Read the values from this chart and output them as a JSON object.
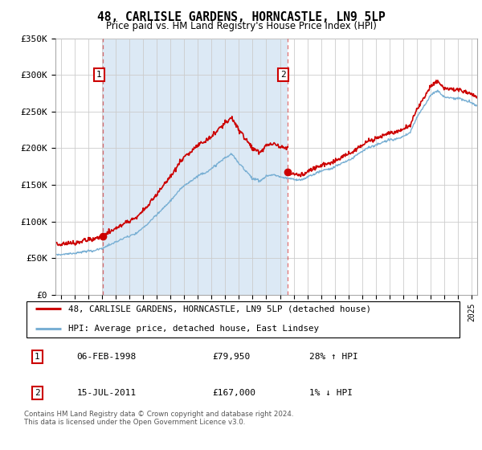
{
  "title": "48, CARLISLE GARDENS, HORNCASTLE, LN9 5LP",
  "subtitle": "Price paid vs. HM Land Registry's House Price Index (HPI)",
  "ylim": [
    0,
    350000
  ],
  "yticks": [
    0,
    50000,
    100000,
    150000,
    200000,
    250000,
    300000,
    350000
  ],
  "ytick_labels": [
    "£0",
    "£50K",
    "£100K",
    "£150K",
    "£200K",
    "£250K",
    "£300K",
    "£350K"
  ],
  "xlim_start": 1994.6,
  "xlim_end": 2025.4,
  "transaction1": {
    "date": 1998.09,
    "price": 79950,
    "label": "1"
  },
  "transaction2": {
    "date": 2011.54,
    "price": 167000,
    "label": "2"
  },
  "line_color_red": "#cc0000",
  "line_color_blue": "#7ab0d4",
  "marker_color": "#cc0000",
  "grid_color": "#cccccc",
  "shade_color": "#dce9f5",
  "background_color": "#ffffff",
  "legend_line1": "48, CARLISLE GARDENS, HORNCASTLE, LN9 5LP (detached house)",
  "legend_line2": "HPI: Average price, detached house, East Lindsey",
  "table_row1": [
    "1",
    "06-FEB-1998",
    "£79,950",
    "28% ↑ HPI"
  ],
  "table_row2": [
    "2",
    "15-JUL-2011",
    "£167,000",
    "1% ↓ HPI"
  ],
  "footer": "Contains HM Land Registry data © Crown copyright and database right 2024.\nThis data is licensed under the Open Government Licence v3.0.",
  "dashed_vline_color": "#cc0000"
}
